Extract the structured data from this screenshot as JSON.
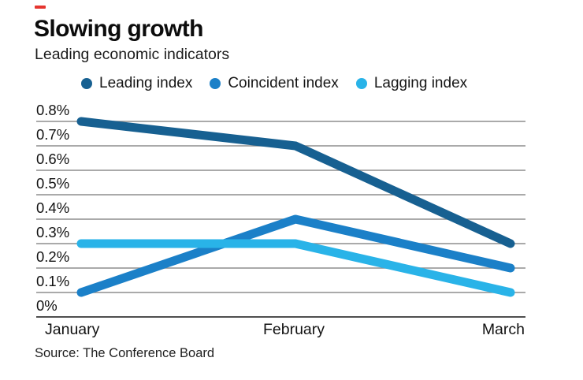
{
  "header": {
    "accent_color": "#e5352f",
    "title": "Slowing growth",
    "subtitle": "Leading economic indicators"
  },
  "chart_data": {
    "type": "line",
    "title": "Slowing growth",
    "subtitle": "Leading economic indicators",
    "categories": [
      "January",
      "February",
      "March"
    ],
    "series": [
      {
        "name": "Leading index",
        "color": "#176091",
        "values": [
          0.8,
          0.7,
          0.3
        ]
      },
      {
        "name": "Coincident index",
        "color": "#1b80c8",
        "values": [
          0.1,
          0.4,
          0.2
        ]
      },
      {
        "name": "Lagging index",
        "color": "#29b3e8",
        "values": [
          0.3,
          0.3,
          0.1
        ]
      }
    ],
    "unit": "%",
    "ylim": [
      0,
      0.8
    ],
    "ytick_labels": [
      "0.8%",
      "0.7%",
      "0.6%",
      "0.5%",
      "0.4%",
      "0.3%",
      "0.2%",
      "0.1%",
      "0%"
    ],
    "grid": "horizontal",
    "grid_color": "#8e8e8e",
    "baseline_color": "#4f4f4f",
    "legend_position": "top"
  },
  "source": {
    "label": "Source: The Conference Board"
  }
}
